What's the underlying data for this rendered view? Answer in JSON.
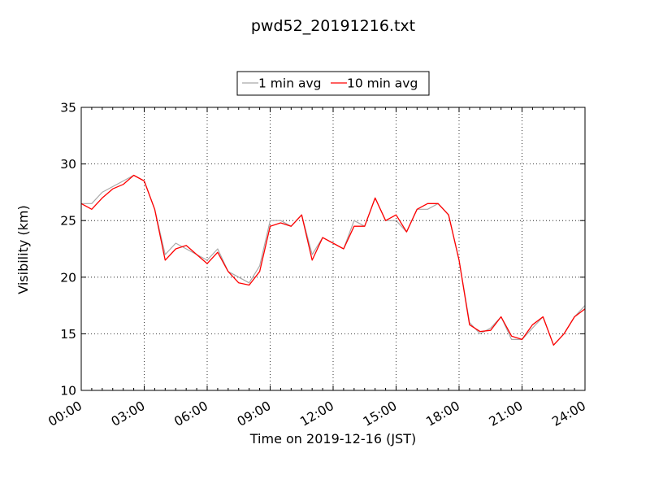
{
  "chart_data": {
    "type": "line",
    "title": "pwd52_20191216.txt",
    "xlabel": "Time on 2019-12-16 (JST)",
    "ylabel": "Visibility (km)",
    "xlim": [
      "00:00",
      "24:00"
    ],
    "ylim": [
      10,
      35
    ],
    "x_ticks": [
      "00:00",
      "03:00",
      "06:00",
      "09:00",
      "12:00",
      "15:00",
      "18:00",
      "21:00",
      "24:00"
    ],
    "y_ticks": [
      10,
      15,
      20,
      25,
      30,
      35
    ],
    "grid": true,
    "legend_position": "top-center",
    "series": [
      {
        "name": "1 min avg",
        "color": "#a9a9a9",
        "x": [
          "00:00",
          "00:30",
          "01:00",
          "01:30",
          "02:00",
          "02:30",
          "03:00",
          "03:30",
          "04:00",
          "04:30",
          "05:00",
          "05:30",
          "06:00",
          "06:30",
          "07:00",
          "07:30",
          "08:00",
          "08:30",
          "09:00",
          "09:30",
          "10:00",
          "10:30",
          "11:00",
          "11:30",
          "12:00",
          "12:30",
          "13:00",
          "13:30",
          "14:00",
          "14:30",
          "15:00",
          "15:30",
          "16:00",
          "16:30",
          "17:00",
          "17:30",
          "18:00",
          "18:30",
          "19:00",
          "19:30",
          "20:00",
          "20:30",
          "21:00",
          "21:30",
          "22:00",
          "22:30",
          "23:00",
          "23:30",
          "24:00"
        ],
        "y": [
          26.5,
          26.5,
          27.5,
          28,
          28.5,
          29,
          28.5,
          26,
          22,
          23,
          22.5,
          22,
          21.5,
          22.5,
          20.5,
          20,
          19.5,
          21,
          25,
          25,
          24.5,
          25.5,
          22,
          23.5,
          23,
          22.5,
          25,
          24.5,
          27,
          25,
          25,
          24,
          26,
          26,
          26.5,
          25.5,
          21.5,
          16,
          15,
          15.5,
          16.5,
          14.5,
          14.5,
          15.5,
          16.5,
          14,
          15,
          16.5,
          17.5
        ]
      },
      {
        "name": "10 min avg",
        "color": "#ff0000",
        "x": [
          "00:00",
          "00:30",
          "01:00",
          "01:30",
          "02:00",
          "02:30",
          "03:00",
          "03:30",
          "04:00",
          "04:30",
          "05:00",
          "05:30",
          "06:00",
          "06:30",
          "07:00",
          "07:30",
          "08:00",
          "08:30",
          "09:00",
          "09:30",
          "10:00",
          "10:30",
          "11:00",
          "11:30",
          "12:00",
          "12:30",
          "13:00",
          "13:30",
          "14:00",
          "14:30",
          "15:00",
          "15:30",
          "16:00",
          "16:30",
          "17:00",
          "17:30",
          "18:00",
          "18:30",
          "19:00",
          "19:30",
          "20:00",
          "20:30",
          "21:00",
          "21:30",
          "22:00",
          "22:30",
          "23:00",
          "23:30",
          "24:00"
        ],
        "y": [
          26.5,
          26,
          27,
          27.8,
          28.2,
          29,
          28.5,
          26,
          21.5,
          22.5,
          22.8,
          22,
          21.2,
          22.2,
          20.5,
          19.5,
          19.3,
          20.5,
          24.5,
          24.8,
          24.5,
          25.5,
          21.5,
          23.5,
          23,
          22.5,
          24.5,
          24.5,
          27,
          25,
          25.5,
          24,
          26,
          26.5,
          26.5,
          25.5,
          21.5,
          15.8,
          15.2,
          15.3,
          16.5,
          14.8,
          14.5,
          15.8,
          16.5,
          14,
          15,
          16.5,
          17.2
        ]
      }
    ]
  }
}
